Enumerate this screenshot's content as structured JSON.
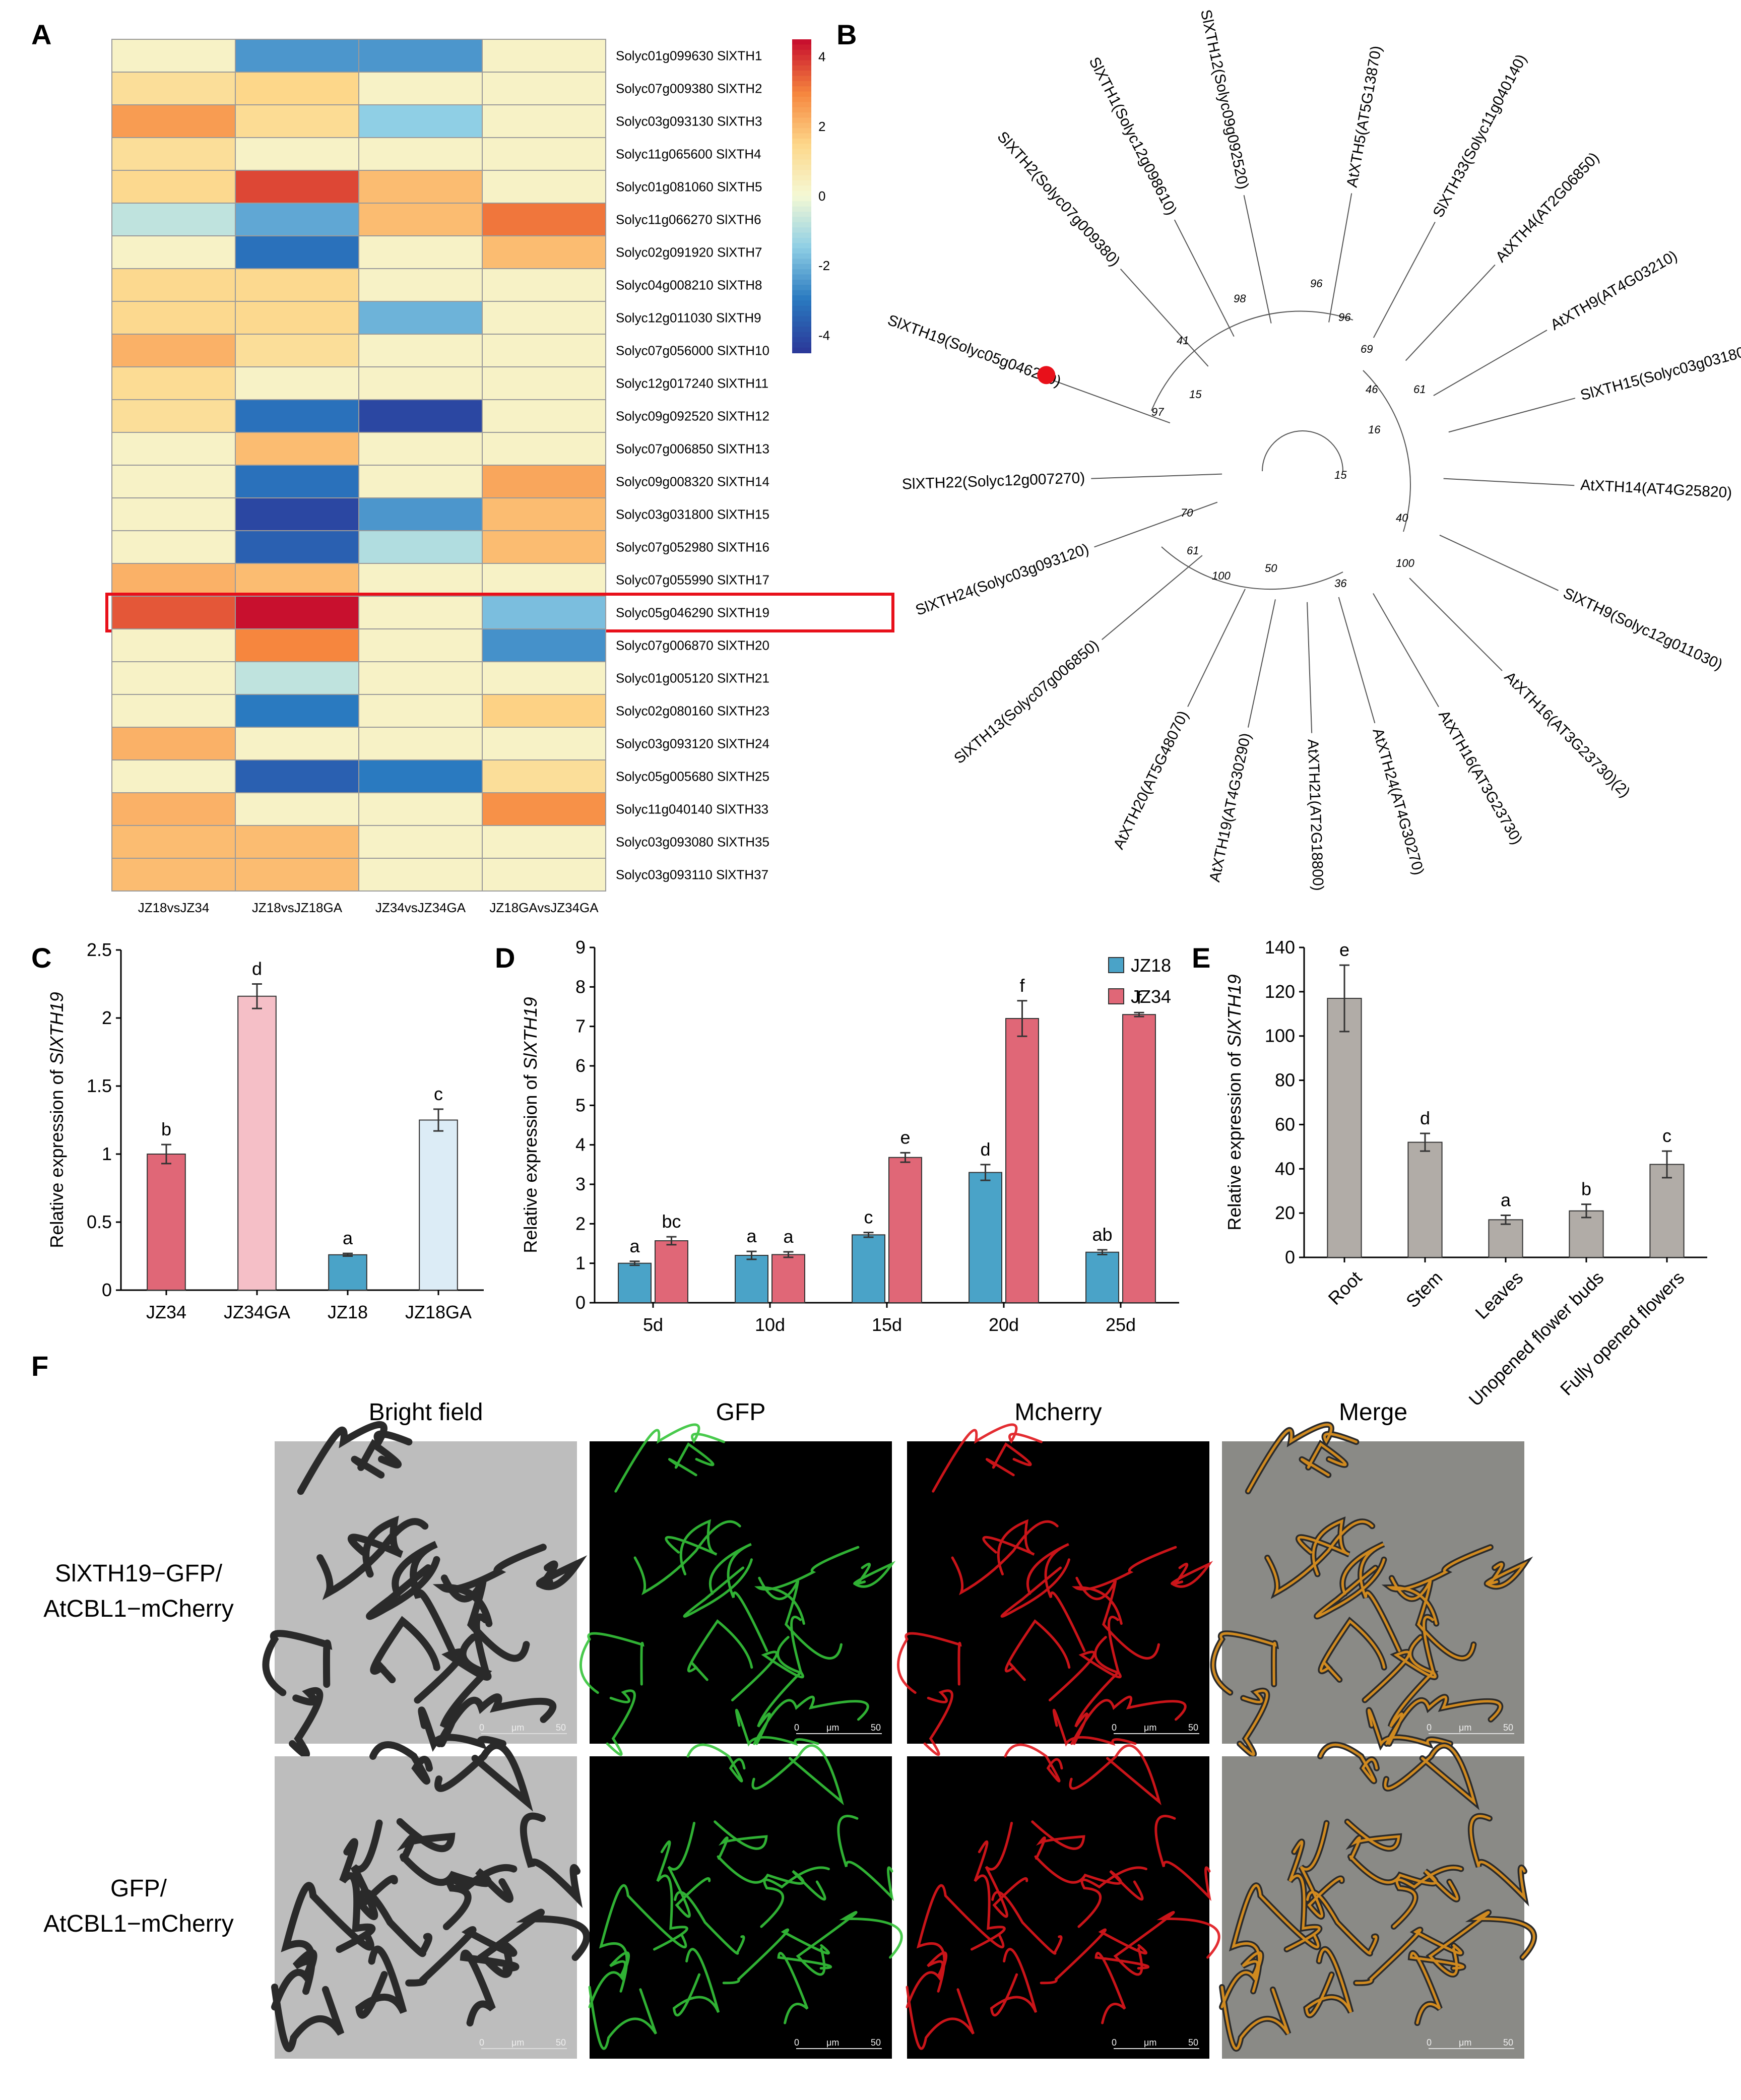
{
  "panel_labels": {
    "A": "A",
    "B": "B",
    "C": "C",
    "D": "D",
    "E": "E",
    "F": "F"
  },
  "heatmap": {
    "columns": [
      "JZ18vsJZ34",
      "JZ18vsJZ18GA",
      "JZ34vsJZ34GA",
      "JZ18GAvsJZ34GA"
    ],
    "rows": [
      {
        "label": "Solyc01g099630 SlXTH1",
        "values": [
          0.3,
          -2.5,
          -2.5,
          0.3
        ]
      },
      {
        "label": "Solyc07g009380 SlXTH2",
        "values": [
          1.2,
          1.5,
          0.3,
          0.3
        ]
      },
      {
        "label": "Solyc03g093130 SlXTH3",
        "values": [
          2.6,
          1.3,
          -1.5,
          0.3
        ]
      },
      {
        "label": "Solyc11g065600 SlXTH4",
        "values": [
          1.2,
          0.3,
          0.3,
          0.3
        ]
      },
      {
        "label": "Solyc01g081060 SlXTH5",
        "values": [
          1.4,
          3.8,
          2.0,
          0.3
        ]
      },
      {
        "label": "Solyc11g066270 SlXTH6",
        "values": [
          -0.8,
          -2.2,
          2.0,
          3.2
        ]
      },
      {
        "label": "Solyc02g091920 SlXTH7",
        "values": [
          0.3,
          -3.2,
          0.3,
          2.0
        ]
      },
      {
        "label": "Solyc04g008210 SlXTH8",
        "values": [
          1.4,
          1.4,
          0.3,
          0.3
        ]
      },
      {
        "label": "Solyc12g011030 SlXTH9",
        "values": [
          1.4,
          1.4,
          -2.0,
          0.3
        ]
      },
      {
        "label": "Solyc07g056000 SlXTH10",
        "values": [
          2.2,
          1.2,
          0.3,
          0.3
        ]
      },
      {
        "label": "Solyc12g017240 SlXTH11",
        "values": [
          1.3,
          0.3,
          0.3,
          0.3
        ]
      },
      {
        "label": "Solyc09g092520 SlXTH12",
        "values": [
          1.2,
          -3.2,
          -4.2,
          0.3
        ]
      },
      {
        "label": "Solyc07g006850 SlXTH13",
        "values": [
          0.3,
          2.0,
          0.3,
          0.3
        ]
      },
      {
        "label": "Solyc09g008320 SlXTH14",
        "values": [
          0.3,
          -3.2,
          0.3,
          2.4
        ]
      },
      {
        "label": "Solyc03g031800 SlXTH15",
        "values": [
          0.3,
          -4.2,
          -2.5,
          2.0
        ]
      },
      {
        "label": "Solyc07g052980 SlXTH16",
        "values": [
          0.3,
          -3.6,
          -1.0,
          2.0
        ]
      },
      {
        "label": "Solyc07g055990 SlXTH17",
        "values": [
          2.2,
          2.0,
          0.3,
          0.3
        ]
      },
      {
        "label": "Solyc05g046290 SlXTH19",
        "values": [
          3.6,
          4.8,
          0.3,
          -1.8
        ]
      },
      {
        "label": "Solyc07g006870 SlXTH20",
        "values": [
          0.3,
          3.0,
          0.3,
          -2.6
        ]
      },
      {
        "label": "Solyc01g005120 SlXTH21",
        "values": [
          0.3,
          -0.8,
          0.3,
          0.3
        ]
      },
      {
        "label": "Solyc02g080160 SlXTH23",
        "values": [
          0.3,
          -3.0,
          0.3,
          1.6
        ]
      },
      {
        "label": "Solyc03g093120 SlXTH24",
        "values": [
          2.2,
          0.3,
          0.3,
          0.3
        ]
      },
      {
        "label": "Solyc05g005680 SlXTH25",
        "values": [
          0.3,
          -3.6,
          -3.0,
          1.2
        ]
      },
      {
        "label": "Solyc11g040140 SlXTH33",
        "values": [
          2.2,
          0.3,
          0.3,
          2.8
        ]
      },
      {
        "label": "Solyc03g093080 SlXTH35",
        "values": [
          2.0,
          2.0,
          0.3,
          0.3
        ]
      },
      {
        "label": "Solyc03g093110 SlXTH37",
        "values": [
          2.0,
          2.0,
          0.3,
          0.3
        ]
      }
    ],
    "highlight_row": "Solyc05g046290 SlXTH19",
    "colorbar_ticks": [
      "4",
      "2",
      "0",
      "-2",
      "-4"
    ],
    "colors": {
      "low": "#2b3a9a",
      "mid": "#f5f9d5",
      "high": "#c8102e"
    }
  },
  "tree": {
    "highlight_color": "#e8101a",
    "leaves": [
      {
        "label": "SlXTH12(Solyc09g092520)"
      },
      {
        "label": "SlXTH1(Solyc12g098610)"
      },
      {
        "label": "SlXTH2(Solyc07g009380)"
      },
      {
        "label": "SlXTH19(Solyc05g046290)"
      },
      {
        "label": "SlXTH22(Solyc12g007270)"
      },
      {
        "label": "SlXTH24(Solyc03g093120)"
      },
      {
        "label": "SlXTH13(Solyc07g006850)"
      },
      {
        "label": "AtXTH20(AT5G48070)"
      },
      {
        "label": "AtXTH19(AT4G30290)"
      },
      {
        "label": "AtXTH21(AT2G18800)"
      },
      {
        "label": "AtXTH24(AT4G30270)"
      },
      {
        "label": "AtXTH16(AT3G23730)"
      },
      {
        "label": "AtXTH16(AT3G23730)(2)"
      },
      {
        "label": "SlXTH9(Solyc12g011030)"
      },
      {
        "label": "AtXTH14(AT4G25820)"
      },
      {
        "label": "SlXTH15(Solyc03g031800)"
      },
      {
        "label": "AtXTH9(AT4G03210)"
      },
      {
        "label": "AtXTH4(AT2G06850)"
      },
      {
        "label": "SlXTH33(Solyc11g040140)"
      },
      {
        "label": "AtXTH5(AT5G13870)"
      }
    ],
    "bootstrap": [
      "98",
      "41",
      "15",
      "97",
      "70",
      "61",
      "100",
      "50",
      "36",
      "100",
      "40",
      "16",
      "15",
      "46",
      "61",
      "69",
      "96",
      "96"
    ]
  },
  "panel_c": {
    "chart_data": {
      "type": "bar",
      "categories": [
        "JZ34",
        "JZ34GA",
        "JZ18",
        "JZ18GA"
      ],
      "values": [
        1.0,
        2.16,
        0.26,
        1.25
      ],
      "errors": [
        0.07,
        0.09,
        0.01,
        0.08
      ],
      "letters": [
        "b",
        "d",
        "a",
        "c"
      ],
      "colors": [
        "#e06777",
        "#f5bfc7",
        "#4aa3c8",
        "#dcecf6"
      ],
      "ylabel_prefix": "Relative expression of ",
      "ylabel_gene": "SlXTH19",
      "ylim": [
        0,
        2.5
      ],
      "yticks": [
        "0",
        "0.5",
        "1",
        "1.5",
        "2",
        "2.5"
      ]
    }
  },
  "panel_d": {
    "chart_data": {
      "type": "bar",
      "categories": [
        "5d",
        "10d",
        "15d",
        "20d",
        "25d"
      ],
      "series": [
        {
          "name": "JZ18",
          "values": [
            1.0,
            1.2,
            1.72,
            3.3,
            1.28
          ],
          "errors": [
            0.05,
            0.1,
            0.06,
            0.2,
            0.06
          ],
          "letters": [
            "a",
            "a",
            "c",
            "d",
            "ab"
          ],
          "color": "#4aa3c8"
        },
        {
          "name": "JZ34",
          "values": [
            1.57,
            1.22,
            3.68,
            7.2,
            7.3
          ],
          "errors": [
            0.1,
            0.07,
            0.12,
            0.45,
            0.05
          ],
          "letters": [
            "bc",
            "a",
            "e",
            "f",
            "f"
          ],
          "color": "#e06777"
        }
      ],
      "ylabel_prefix": "Relative expression of ",
      "ylabel_gene": "SlXTH19",
      "ylim": [
        0,
        9
      ],
      "yticks": [
        "0",
        "1",
        "2",
        "3",
        "4",
        "5",
        "6",
        "7",
        "8",
        "9"
      ]
    }
  },
  "panel_e": {
    "chart_data": {
      "type": "bar",
      "categories": [
        "Root",
        "Stem",
        "Leaves",
        "Unopened flower buds",
        "Fully opened flowers"
      ],
      "values": [
        117,
        52,
        17,
        21,
        42
      ],
      "errors": [
        15,
        4,
        2,
        3,
        6
      ],
      "letters": [
        "e",
        "d",
        "a",
        "b",
        "c"
      ],
      "color": "#b1aca7",
      "ylabel_prefix": "Relative expression of ",
      "ylabel_gene": "SlXTH19",
      "ylim": [
        0,
        140
      ],
      "yticks": [
        "0",
        "20",
        "40",
        "60",
        "80",
        "100",
        "120",
        "140"
      ]
    }
  },
  "panel_f": {
    "columns": [
      "Bright field",
      "GFP",
      "Mcherry",
      "Merge"
    ],
    "rows": [
      {
        "line1": "SlXTH19−GFP/",
        "line2": "AtCBL1−mCherry"
      },
      {
        "line1": "GFP/",
        "line2": "AtCBL1−mCherry"
      }
    ],
    "scale": {
      "start": "0",
      "unit": "μm",
      "end": "50"
    },
    "channel_colors": {
      "bright": "#6a6a6a",
      "gfp": "#35c43a",
      "mcherry": "#e0161c",
      "merge_line": "#d08a20"
    }
  }
}
